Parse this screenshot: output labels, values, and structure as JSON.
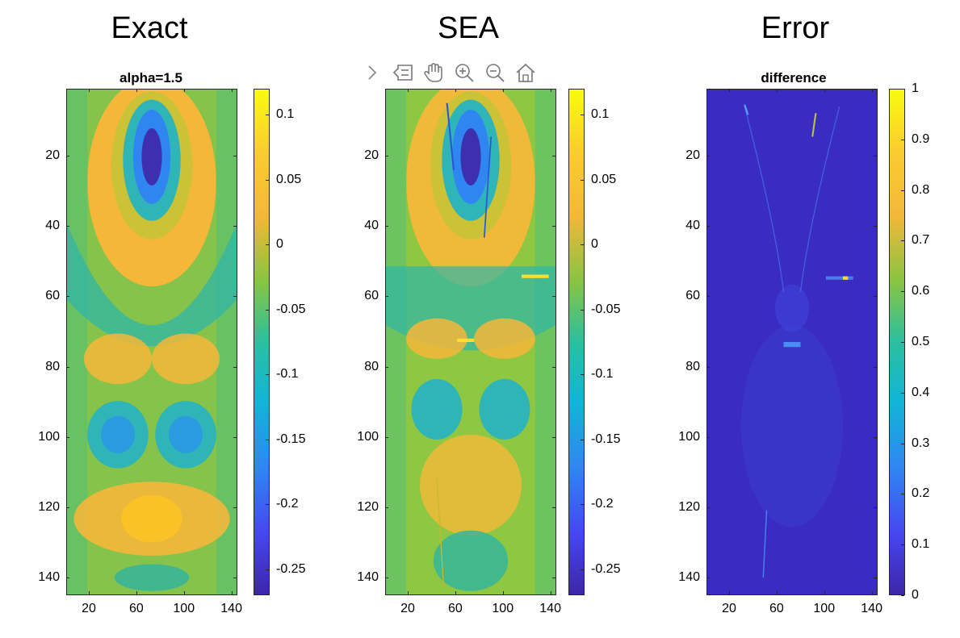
{
  "headers": [
    "Exact",
    "SEA",
    "Error"
  ],
  "toolbar": {
    "icons": [
      "chevron-right-icon",
      "data-tips-icon",
      "pan-hand-icon",
      "zoom-in-icon",
      "zoom-out-icon",
      "home-icon"
    ]
  },
  "chart_data": [
    {
      "type": "heatmap",
      "title": "alpha=1.5",
      "colormap": "parula",
      "x_ticks": [
        20,
        60,
        100,
        140
      ],
      "y_ticks": [
        20,
        40,
        60,
        80,
        100,
        120,
        140
      ],
      "xlim": [
        1,
        145
      ],
      "ylim": [
        1,
        145
      ],
      "y_reversed": true,
      "clim": [
        -0.27,
        0.12
      ],
      "colorbar_ticks": [
        0.1,
        0.05,
        0,
        -0.05,
        -0.1,
        -0.15,
        -0.2,
        -0.25
      ],
      "colorbar_tick_labels": [
        "0.1",
        "0.05",
        "0",
        "-0.05",
        "-0.1",
        "-0.15",
        "-0.2",
        "-0.25"
      ]
    },
    {
      "type": "heatmap",
      "title": "",
      "colormap": "parula",
      "x_ticks": [
        20,
        60,
        100,
        140
      ],
      "y_ticks": [
        20,
        40,
        60,
        80,
        100,
        120,
        140
      ],
      "xlim": [
        1,
        145
      ],
      "ylim": [
        1,
        145
      ],
      "y_reversed": true,
      "clim": [
        -0.27,
        0.12
      ],
      "colorbar_ticks": [
        0.1,
        0.05,
        0,
        -0.05,
        -0.1,
        -0.15,
        -0.2,
        -0.25
      ],
      "colorbar_tick_labels": [
        "0.1",
        "0.05",
        "0",
        "-0.05",
        "-0.1",
        "-0.15",
        "-0.2",
        "-0.25"
      ]
    },
    {
      "type": "heatmap",
      "title": "difference",
      "colormap": "parula",
      "x_ticks": [
        20,
        60,
        100,
        140
      ],
      "y_ticks": [
        20,
        40,
        60,
        80,
        100,
        120,
        140
      ],
      "xlim": [
        1,
        145
      ],
      "ylim": [
        1,
        145
      ],
      "y_reversed": true,
      "clim": [
        0,
        1
      ],
      "colorbar_ticks": [
        1,
        0.9,
        0.8,
        0.7,
        0.6,
        0.5,
        0.4,
        0.3,
        0.2,
        0.1,
        0
      ],
      "colorbar_tick_labels": [
        "1",
        "0.9",
        "0.8",
        "0.7",
        "0.6",
        "0.5",
        "0.4",
        "0.3",
        "0.2",
        "0.1",
        "0"
      ]
    }
  ]
}
